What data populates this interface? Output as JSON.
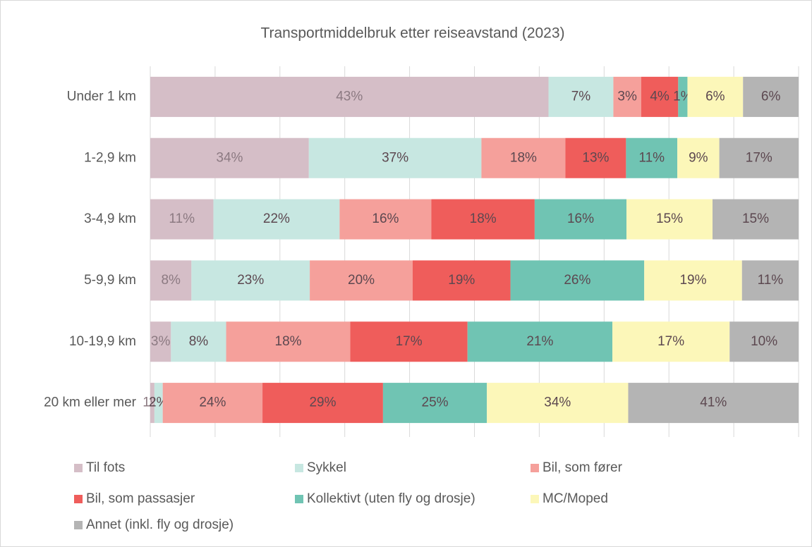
{
  "chart_data": {
    "type": "bar",
    "orientation": "horizontal",
    "stacking": "percent",
    "title": "Transportmiddelbruk etter reiseavstand (2023)",
    "categories": [
      "Under 1 km",
      "1-2,9 km",
      "3-4,9 km",
      "5-9,9 km",
      "10-19,9 km",
      "20 km eller mer"
    ],
    "series": [
      {
        "name": "Til fots",
        "color": "#d5bec7",
        "values": [
          43,
          34,
          11,
          8,
          3,
          1
        ]
      },
      {
        "name": "Sykkel",
        "color": "#c7e7e1",
        "values": [
          7,
          37,
          22,
          23,
          8,
          2
        ]
      },
      {
        "name": "Bil, som fører",
        "color": "#f5a09b",
        "values": [
          3,
          18,
          16,
          20,
          18,
          24
        ]
      },
      {
        "name": "Bil, som passasjer",
        "color": "#ef5d5b",
        "values": [
          4,
          13,
          18,
          19,
          17,
          29
        ]
      },
      {
        "name": "Kollektivt (uten fly og drosje)",
        "color": "#70c4b3",
        "values": [
          1,
          11,
          16,
          26,
          21,
          25
        ]
      },
      {
        "name": "MC/Moped",
        "color": "#fcf7b9",
        "values": [
          6,
          9,
          15,
          19,
          17,
          34
        ]
      },
      {
        "name": "Annet (inkl. fly og drosje)",
        "color": "#b4b4b4",
        "values": [
          6,
          17,
          15,
          11,
          10,
          41
        ]
      }
    ],
    "value_labels": [
      [
        "43%",
        "34%",
        "11%",
        "8%",
        "3%",
        "1%"
      ],
      [
        "7%",
        "37%",
        "22%",
        "23%",
        "8%",
        "2%"
      ],
      [
        "3%",
        "18%",
        "16%",
        "20%",
        "18%",
        "24%"
      ],
      [
        "4%",
        "13%",
        "18%",
        "19%",
        "17%",
        "29%"
      ],
      [
        "1%",
        "11%",
        "16%",
        "26%",
        "21%",
        "25%"
      ],
      [
        "6%",
        "9%",
        "15%",
        "19%",
        "17%",
        "34%"
      ],
      [
        "6%",
        "17%",
        "15%",
        "11%",
        "10%",
        "41%"
      ]
    ],
    "xlim": [
      0,
      100
    ],
    "xticks": [
      0,
      10,
      20,
      30,
      40,
      50,
      60,
      70,
      80,
      90,
      100
    ],
    "grid": true,
    "legend": "bottom"
  }
}
